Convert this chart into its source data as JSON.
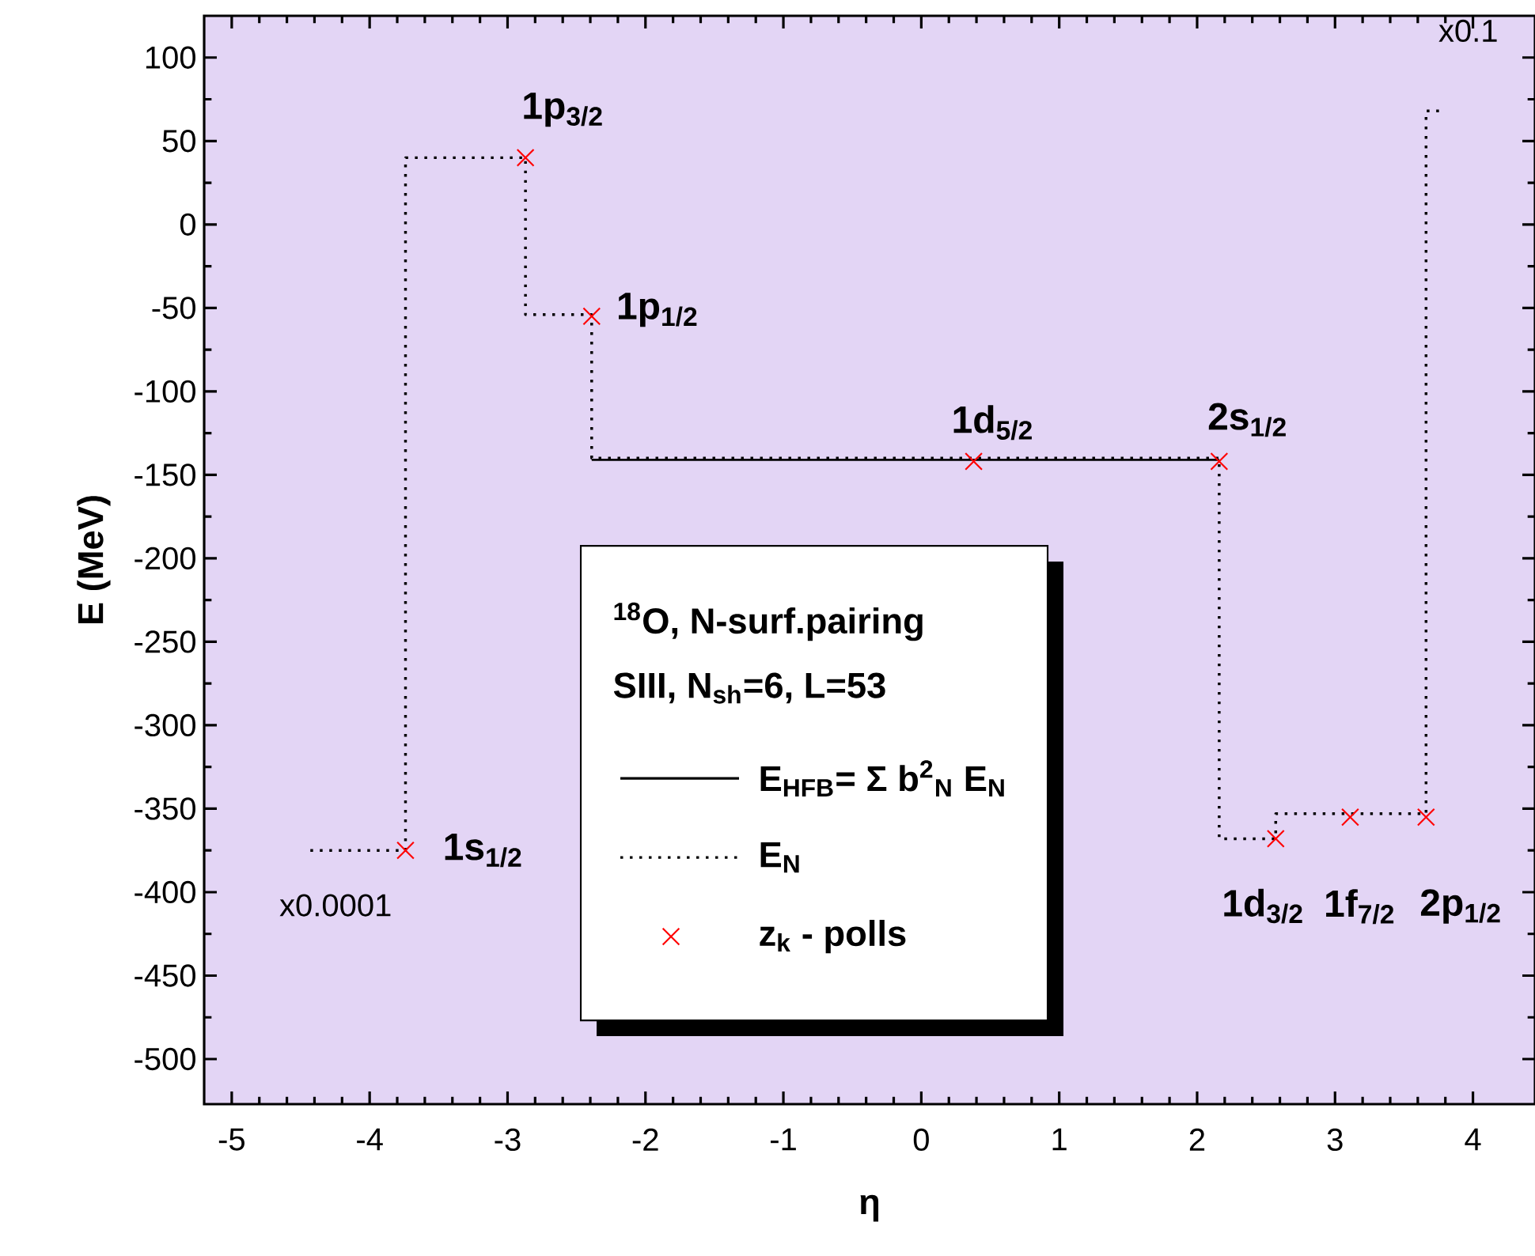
{
  "chart_data": {
    "type": "line",
    "title": "$^{18}$O, N-surf.pairing",
    "subtitle": "SIII, N$_{sh}$=6, L=53",
    "xlabel": "η",
    "ylabel": "E (MeV)",
    "xlim": [
      -5.2,
      4.45
    ],
    "ylim": [
      -527,
      125
    ],
    "xticks": [
      -5,
      -4,
      -3,
      -2,
      -1,
      0,
      1,
      2,
      3,
      4
    ],
    "yticks": [
      -500,
      -450,
      -400,
      -350,
      -300,
      -250,
      -200,
      -150,
      -100,
      -50,
      0,
      50,
      100
    ],
    "legend": "bottom",
    "series": [
      {
        "name": "E$_{HFB}$= Σ b$^{2}$$_{N}$ E$_{N}$",
        "type": "line",
        "color": "#000000",
        "line_style": "solid",
        "marker": "none",
        "x": [
          -2.39,
          2.16
        ],
        "values": [
          -141,
          -141
        ]
      },
      {
        "name": "E$_{N}$",
        "type": "line",
        "color": "#000000",
        "line_style": "dotted",
        "marker": "none",
        "x": [
          -4.43,
          -3.74,
          -3.74,
          -2.87,
          -2.87,
          -2.39,
          -2.39,
          2.16,
          2.16,
          2.57,
          2.57,
          3.66,
          3.66,
          3.76
        ],
        "values": [
          -375,
          -375,
          40,
          40,
          -54,
          -54,
          -140,
          -140,
          -368,
          -368,
          -353,
          -353,
          68,
          68
        ]
      },
      {
        "name": "z$_{k}$ - polls",
        "type": "scatter",
        "color": "#ff0000",
        "marker": "cross",
        "x": [
          -3.74,
          -2.87,
          -2.39,
          0.38,
          2.16,
          2.57,
          3.11,
          3.66
        ],
        "values": [
          -375,
          40,
          -55,
          -142,
          -142,
          -368,
          -355,
          -355
        ]
      }
    ],
    "annotations": [
      {
        "text": "1s$_{1/2}$",
        "x": -3.74,
        "y": -375
      },
      {
        "text": "1p$_{3/2}$",
        "x": -2.87,
        "y": 40
      },
      {
        "text": "1p$_{1/2}$",
        "x": -2.39,
        "y": -55
      },
      {
        "text": "1d$_{5/2}$",
        "x": 0.38,
        "y": -142
      },
      {
        "text": "2s$_{1/2}$",
        "x": 2.16,
        "y": -142
      },
      {
        "text": "1d$_{3/2}$",
        "x": 2.57,
        "y": -368
      },
      {
        "text": "1f$_{7/2}$",
        "x": 3.11,
        "y": -355
      },
      {
        "text": "2p$_{1/2}$",
        "x": 3.66,
        "y": -355
      },
      {
        "text": "x0.0001",
        "x": -4.43,
        "y": -375
      },
      {
        "text": "x0.1",
        "x": 3.76,
        "y": 68
      }
    ]
  }
}
